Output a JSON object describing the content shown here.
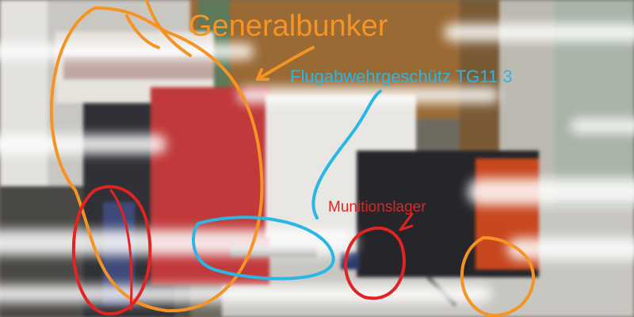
{
  "labels": {
    "general": "Generalbunker",
    "flak": "Flugabwehrgeschütz TG11 3",
    "munitions": "Munitionslager"
  },
  "colors": {
    "orange": "#f59424",
    "cyan": "#2bb7e6",
    "red": "#e02424"
  }
}
